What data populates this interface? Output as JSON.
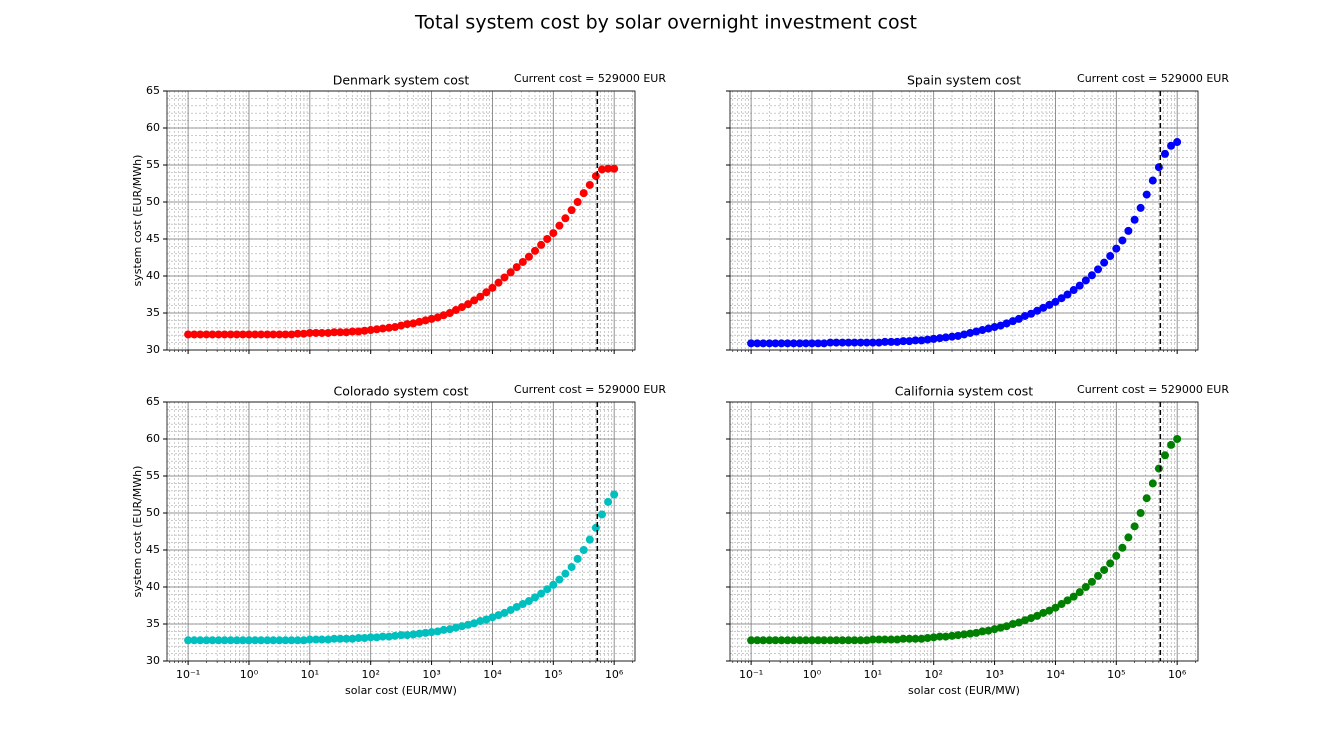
{
  "title": "Total system cost by solar overnight investment cost",
  "chart_data": [
    {
      "type": "scatter",
      "title": "Denmark system cost",
      "annotation": "Current cost = 529000 EUR",
      "vline": 529000,
      "ylabel": "system cost (EUR/MWh)",
      "color": "#ff0000",
      "xscale": "log",
      "grid": "both",
      "xtick_labels": false,
      "xlim": [
        0.045,
        2200000
      ],
      "ylim": [
        30,
        65
      ],
      "yticks": [
        30,
        35,
        40,
        45,
        50,
        55,
        60,
        65
      ],
      "xticks": [
        0.1,
        1,
        10,
        100,
        1000,
        10000,
        100000,
        1000000
      ],
      "x": [
        0.1,
        0.126,
        0.158,
        0.2,
        0.251,
        0.316,
        0.398,
        0.501,
        0.631,
        0.794,
        1,
        1.26,
        1.58,
        2,
        2.51,
        3.16,
        3.98,
        5.01,
        6.31,
        7.94,
        10,
        12.6,
        15.8,
        20,
        25.1,
        31.6,
        39.8,
        50.1,
        63.1,
        79.4,
        100,
        126,
        158,
        200,
        251,
        316,
        398,
        501,
        631,
        794,
        1000,
        1260,
        1580,
        2000,
        2510,
        3160,
        3980,
        5010,
        6310,
        7940,
        10000,
        12600,
        15800,
        19950,
        25100,
        31600,
        39800,
        50100,
        63100,
        79400,
        100000,
        126000,
        158000,
        200000,
        251000,
        316000,
        398000,
        501000,
        631000,
        794000,
        1000000
      ],
      "values": [
        32.1,
        32.1,
        32.1,
        32.1,
        32.1,
        32.1,
        32.1,
        32.1,
        32.1,
        32.1,
        32.1,
        32.1,
        32.1,
        32.1,
        32.1,
        32.1,
        32.1,
        32.1,
        32.2,
        32.2,
        32.3,
        32.3,
        32.3,
        32.3,
        32.4,
        32.4,
        32.4,
        32.5,
        32.5,
        32.6,
        32.7,
        32.8,
        32.9,
        33.0,
        33.1,
        33.3,
        33.5,
        33.6,
        33.8,
        34.0,
        34.2,
        34.4,
        34.7,
        35.0,
        35.4,
        35.8,
        36.2,
        36.7,
        37.2,
        37.8,
        38.4,
        39.1,
        39.8,
        40.5,
        41.2,
        41.9,
        42.6,
        43.4,
        44.2,
        45.0,
        45.8,
        46.8,
        47.8,
        48.9,
        50.0,
        51.2,
        52.3,
        53.5,
        54.4,
        54.5,
        54.5
      ]
    },
    {
      "type": "scatter",
      "title": "Spain system cost",
      "annotation": "Current cost = 529000 EUR",
      "vline": 529000,
      "color": "#0000ff",
      "xscale": "log",
      "grid": "both",
      "xtick_labels": false,
      "ytick_labels": false,
      "xlim": [
        0.045,
        2200000
      ],
      "ylim": [
        30,
        65
      ],
      "yticks": [
        30,
        35,
        40,
        45,
        50,
        55,
        60,
        65
      ],
      "xticks": [
        0.1,
        1,
        10,
        100,
        1000,
        10000,
        100000,
        1000000
      ],
      "x": [
        0.1,
        0.126,
        0.158,
        0.2,
        0.251,
        0.316,
        0.398,
        0.501,
        0.631,
        0.794,
        1,
        1.26,
        1.58,
        2,
        2.51,
        3.16,
        3.98,
        5.01,
        6.31,
        7.94,
        10,
        12.6,
        15.8,
        20,
        25.1,
        31.6,
        39.8,
        50.1,
        63.1,
        79.4,
        100,
        126,
        158,
        200,
        251,
        316,
        398,
        501,
        631,
        794,
        1000,
        1260,
        1580,
        2000,
        2510,
        3160,
        3980,
        5010,
        6310,
        7940,
        10000,
        12600,
        15800,
        19950,
        25100,
        31600,
        39800,
        50100,
        63100,
        79400,
        100000,
        126000,
        158000,
        200000,
        251000,
        316000,
        398000,
        501000,
        631000,
        794000,
        1000000
      ],
      "values": [
        30.9,
        30.9,
        30.9,
        30.9,
        30.9,
        30.9,
        30.9,
        30.9,
        30.9,
        30.9,
        30.9,
        30.9,
        30.9,
        31.0,
        31.0,
        31.0,
        31.0,
        31.0,
        31.0,
        31.0,
        31.0,
        31.0,
        31.1,
        31.1,
        31.1,
        31.2,
        31.2,
        31.3,
        31.3,
        31.4,
        31.5,
        31.6,
        31.7,
        31.8,
        31.9,
        32.1,
        32.3,
        32.5,
        32.7,
        32.9,
        33.1,
        33.3,
        33.6,
        33.9,
        34.2,
        34.6,
        34.9,
        35.3,
        35.7,
        36.1,
        36.5,
        37.0,
        37.5,
        38.1,
        38.7,
        39.4,
        40.1,
        40.9,
        41.8,
        42.7,
        43.7,
        44.8,
        46.1,
        47.6,
        49.2,
        51.0,
        52.9,
        54.7,
        56.5,
        57.6,
        58.1
      ]
    },
    {
      "type": "scatter",
      "title": "Colorado system cost",
      "annotation": "Current cost = 529000 EUR",
      "vline": 529000,
      "ylabel": "system cost (EUR/MWh)",
      "xlabel": "solar cost (EUR/MW)",
      "color": "#00bfbf",
      "xscale": "log",
      "grid": "both",
      "xlim": [
        0.045,
        2200000
      ],
      "ylim": [
        30,
        65
      ],
      "yticks": [
        30,
        35,
        40,
        45,
        50,
        55,
        60,
        65
      ],
      "xticks": [
        {
          "value": 0.1,
          "label": "10⁻¹"
        },
        {
          "value": 1,
          "label": "10⁰"
        },
        {
          "value": 10,
          "label": "10¹"
        },
        {
          "value": 100,
          "label": "10²"
        },
        {
          "value": 1000,
          "label": "10³"
        },
        {
          "value": 10000,
          "label": "10⁴"
        },
        {
          "value": 100000,
          "label": "10⁵"
        },
        {
          "value": 1000000,
          "label": "10⁶"
        }
      ],
      "x": [
        0.1,
        0.126,
        0.158,
        0.2,
        0.251,
        0.316,
        0.398,
        0.501,
        0.631,
        0.794,
        1,
        1.26,
        1.58,
        2,
        2.51,
        3.16,
        3.98,
        5.01,
        6.31,
        7.94,
        10,
        12.6,
        15.8,
        20,
        25.1,
        31.6,
        39.8,
        50.1,
        63.1,
        79.4,
        100,
        126,
        158,
        200,
        251,
        316,
        398,
        501,
        631,
        794,
        1000,
        1260,
        1580,
        2000,
        2510,
        3160,
        3980,
        5010,
        6310,
        7940,
        10000,
        12600,
        15800,
        19950,
        25100,
        31600,
        39800,
        50100,
        63100,
        79400,
        100000,
        126000,
        158000,
        200000,
        251000,
        316000,
        398000,
        501000,
        631000,
        794000,
        1000000
      ],
      "values": [
        32.8,
        32.8,
        32.8,
        32.8,
        32.8,
        32.8,
        32.8,
        32.8,
        32.8,
        32.8,
        32.8,
        32.8,
        32.8,
        32.8,
        32.8,
        32.8,
        32.8,
        32.8,
        32.8,
        32.8,
        32.9,
        32.9,
        32.9,
        32.9,
        33.0,
        33.0,
        33.0,
        33.0,
        33.1,
        33.1,
        33.2,
        33.2,
        33.3,
        33.3,
        33.4,
        33.5,
        33.5,
        33.6,
        33.7,
        33.8,
        33.9,
        34.0,
        34.2,
        34.3,
        34.5,
        34.7,
        34.9,
        35.1,
        35.4,
        35.6,
        35.9,
        36.2,
        36.5,
        36.9,
        37.3,
        37.7,
        38.1,
        38.6,
        39.1,
        39.7,
        40.3,
        41.0,
        41.8,
        42.7,
        43.8,
        45.0,
        46.4,
        48.0,
        49.8,
        51.5,
        52.5
      ]
    },
    {
      "type": "scatter",
      "title": "California system cost",
      "annotation": "Current cost = 529000 EUR",
      "vline": 529000,
      "xlabel": "solar cost (EUR/MW)",
      "color": "#008000",
      "xscale": "log",
      "grid": "both",
      "ytick_labels": false,
      "xlim": [
        0.045,
        2200000
      ],
      "ylim": [
        30,
        65
      ],
      "yticks": [
        30,
        35,
        40,
        45,
        50,
        55,
        60,
        65
      ],
      "xticks": [
        {
          "value": 0.1,
          "label": "10⁻¹"
        },
        {
          "value": 1,
          "label": "10⁰"
        },
        {
          "value": 10,
          "label": "10¹"
        },
        {
          "value": 100,
          "label": "10²"
        },
        {
          "value": 1000,
          "label": "10³"
        },
        {
          "value": 10000,
          "label": "10⁴"
        },
        {
          "value": 100000,
          "label": "10⁵"
        },
        {
          "value": 1000000,
          "label": "10⁶"
        }
      ],
      "x": [
        0.1,
        0.126,
        0.158,
        0.2,
        0.251,
        0.316,
        0.398,
        0.501,
        0.631,
        0.794,
        1,
        1.26,
        1.58,
        2,
        2.51,
        3.16,
        3.98,
        5.01,
        6.31,
        7.94,
        10,
        12.6,
        15.8,
        20,
        25.1,
        31.6,
        39.8,
        50.1,
        63.1,
        79.4,
        100,
        126,
        158,
        200,
        251,
        316,
        398,
        501,
        631,
        794,
        1000,
        1260,
        1580,
        2000,
        2510,
        3160,
        3980,
        5010,
        6310,
        7940,
        10000,
        12600,
        15800,
        19950,
        25100,
        31600,
        39800,
        50100,
        63100,
        79400,
        100000,
        126000,
        158000,
        200000,
        251000,
        316000,
        398000,
        501000,
        631000,
        794000,
        1000000
      ],
      "values": [
        32.8,
        32.8,
        32.8,
        32.8,
        32.8,
        32.8,
        32.8,
        32.8,
        32.8,
        32.8,
        32.8,
        32.8,
        32.8,
        32.8,
        32.8,
        32.8,
        32.8,
        32.8,
        32.8,
        32.8,
        32.9,
        32.9,
        32.9,
        32.9,
        32.9,
        33.0,
        33.0,
        33.0,
        33.0,
        33.1,
        33.2,
        33.3,
        33.3,
        33.4,
        33.5,
        33.6,
        33.7,
        33.8,
        34.0,
        34.1,
        34.3,
        34.5,
        34.7,
        35.0,
        35.2,
        35.5,
        35.8,
        36.1,
        36.5,
        36.8,
        37.2,
        37.7,
        38.2,
        38.7,
        39.3,
        40.0,
        40.7,
        41.5,
        42.3,
        43.2,
        44.2,
        45.3,
        46.7,
        48.2,
        50.0,
        52.0,
        54.0,
        56.0,
        57.8,
        59.2,
        60.0
      ]
    }
  ]
}
